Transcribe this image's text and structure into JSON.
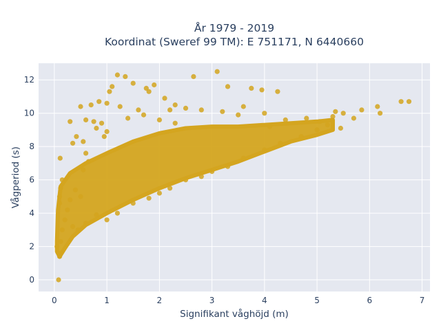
{
  "chart_data": {
    "type": "scatter",
    "title_lines": [
      "År 1979 - 2019",
      "Koordinat (Sweref 99 TM): E 751171, N 6440660"
    ],
    "xlabel": "Signifikant våghöjd (m)",
    "ylabel": "Vågperiod (s)",
    "xlim": [
      -0.3,
      7.15
    ],
    "ylim": [
      -0.7,
      13.0
    ],
    "xticks": [
      0,
      1,
      2,
      3,
      4,
      5,
      6,
      7
    ],
    "yticks": [
      0,
      2,
      4,
      6,
      8,
      10,
      12
    ],
    "grid": true,
    "legend": "none",
    "marker_color": "#d4a51f",
    "plot_background": "#e5e8f0",
    "points": [
      [
        0.08,
        0.0
      ],
      [
        0.05,
        2.0
      ],
      [
        0.08,
        1.6
      ],
      [
        0.1,
        1.4
      ],
      [
        0.12,
        2.3
      ],
      [
        0.15,
        3.0
      ],
      [
        0.2,
        3.6
      ],
      [
        0.25,
        4.2
      ],
      [
        0.1,
        4.6
      ],
      [
        0.1,
        5.0
      ],
      [
        0.12,
        5.5
      ],
      [
        0.15,
        6.0
      ],
      [
        0.11,
        7.3
      ],
      [
        0.3,
        4.8
      ],
      [
        0.4,
        5.4
      ],
      [
        0.5,
        5.0
      ],
      [
        0.35,
        3.2
      ],
      [
        0.45,
        3.0
      ],
      [
        0.6,
        3.4
      ],
      [
        0.8,
        3.9
      ],
      [
        0.55,
        6.6
      ],
      [
        0.6,
        7.6
      ],
      [
        0.6,
        9.6
      ],
      [
        0.3,
        9.5
      ],
      [
        0.42,
        8.6
      ],
      [
        0.55,
        8.3
      ],
      [
        0.7,
        10.5
      ],
      [
        0.85,
        10.7
      ],
      [
        1.0,
        10.6
      ],
      [
        1.05,
        11.3
      ],
      [
        1.2,
        12.3
      ],
      [
        1.35,
        12.2
      ],
      [
        1.5,
        11.8
      ],
      [
        1.1,
        11.6
      ],
      [
        1.75,
        11.5
      ],
      [
        1.9,
        11.7
      ],
      [
        1.8,
        11.3
      ],
      [
        2.1,
        10.9
      ],
      [
        2.3,
        10.5
      ],
      [
        2.65,
        12.2
      ],
      [
        3.1,
        12.5
      ],
      [
        3.3,
        11.6
      ],
      [
        3.75,
        11.5
      ],
      [
        3.95,
        11.4
      ],
      [
        4.25,
        11.3
      ],
      [
        2.5,
        10.3
      ],
      [
        2.8,
        10.2
      ],
      [
        3.2,
        10.1
      ],
      [
        3.6,
        10.4
      ],
      [
        4.0,
        10.0
      ],
      [
        4.4,
        9.6
      ],
      [
        4.8,
        9.7
      ],
      [
        5.05,
        9.5
      ],
      [
        5.2,
        9.3
      ],
      [
        5.35,
        10.1
      ],
      [
        5.5,
        10.0
      ],
      [
        5.7,
        9.7
      ],
      [
        5.85,
        10.2
      ],
      [
        6.15,
        10.4
      ],
      [
        6.2,
        10.0
      ],
      [
        6.6,
        10.7
      ],
      [
        6.75,
        10.7
      ],
      [
        5.3,
        9.8
      ],
      [
        5.45,
        9.1
      ],
      [
        1.0,
        3.6
      ],
      [
        1.2,
        4.0
      ],
      [
        1.5,
        4.6
      ],
      [
        1.8,
        4.9
      ],
      [
        2.0,
        5.2
      ],
      [
        2.2,
        5.5
      ],
      [
        2.5,
        6.0
      ],
      [
        2.8,
        6.2
      ],
      [
        3.0,
        6.5
      ],
      [
        3.3,
        6.8
      ],
      [
        3.6,
        7.3
      ],
      [
        4.0,
        7.8
      ],
      [
        4.3,
        8.2
      ],
      [
        4.7,
        8.6
      ],
      [
        5.0,
        9.0
      ],
      [
        1.0,
        8.9
      ],
      [
        1.4,
        9.7
      ],
      [
        1.7,
        9.9
      ],
      [
        2.0,
        9.6
      ],
      [
        2.3,
        9.4
      ],
      [
        0.9,
        9.4
      ],
      [
        0.8,
        9.1
      ],
      [
        1.25,
        10.4
      ],
      [
        1.6,
        10.2
      ],
      [
        0.5,
        10.4
      ],
      [
        0.75,
        9.5
      ],
      [
        0.95,
        8.6
      ],
      [
        2.2,
        10.2
      ],
      [
        3.5,
        9.9
      ],
      [
        4.1,
        9.2
      ],
      [
        0.35,
        8.2
      ],
      [
        0.65,
        7.1
      ]
    ]
  }
}
